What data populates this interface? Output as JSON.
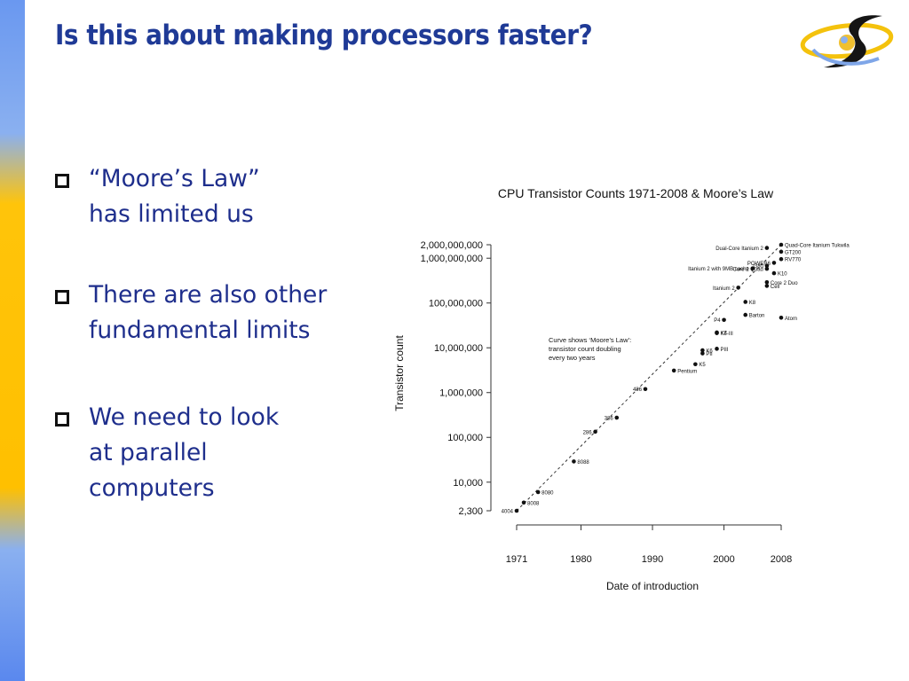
{
  "slide": {
    "title": "Is this about making processors faster?",
    "accent_color": "#1f3a96",
    "bullets": [
      {
        "lines": [
          "“Moore’s Law”",
          "has limited us"
        ]
      },
      {
        "lines": [
          "There are also other",
          "fundamental limits"
        ]
      },
      {
        "lines": [
          "We need to look",
          "at parallel",
          "computers"
        ]
      }
    ]
  },
  "chart_data": {
    "type": "scatter",
    "title": "CPU Transistor Counts 1971-2008 & Moore’s Law",
    "xlabel": "Date of introduction",
    "ylabel": "Transistor count",
    "y_scale": "log",
    "xlim": [
      1971,
      2008
    ],
    "ylim": [
      2300,
      2000000000
    ],
    "x_ticks": [
      1971,
      1980,
      1990,
      2000,
      2008
    ],
    "y_ticks": [
      {
        "value": 2300,
        "label": "2,300"
      },
      {
        "value": 10000,
        "label": "10,000"
      },
      {
        "value": 100000,
        "label": "100,000"
      },
      {
        "value": 1000000,
        "label": "1,000,000"
      },
      {
        "value": 10000000,
        "label": "10,000,000"
      },
      {
        "value": 100000000,
        "label": "100,000,000"
      },
      {
        "value": 1000000000,
        "label": "1,000,000,000"
      },
      {
        "value": 2000000000,
        "label": "2,000,000,000"
      }
    ],
    "annotation": [
      "Curve shows ‘Moore’s Law’:",
      "transistor count doubling",
      "every two years"
    ],
    "trend_line": {
      "x": [
        1971,
        2008
      ],
      "y": [
        2300,
        2000000000
      ]
    },
    "points": [
      {
        "label": "4004",
        "x": 1971,
        "y": 2300,
        "side": "left"
      },
      {
        "label": "8008",
        "x": 1972,
        "y": 3500,
        "side": "right"
      },
      {
        "label": "8080",
        "x": 1974,
        "y": 6000,
        "side": "right"
      },
      {
        "label": "8088",
        "x": 1979,
        "y": 29000,
        "side": "right"
      },
      {
        "label": "286",
        "x": 1982,
        "y": 134000,
        "side": "left"
      },
      {
        "label": "386",
        "x": 1985,
        "y": 275000,
        "side": "left"
      },
      {
        "label": "486",
        "x": 1989,
        "y": 1200000,
        "side": "left"
      },
      {
        "label": "Pentium",
        "x": 1993,
        "y": 3100000,
        "side": "right"
      },
      {
        "label": "K5",
        "x": 1996,
        "y": 4300000,
        "side": "right"
      },
      {
        "label": "K6",
        "x": 1997,
        "y": 8800000,
        "side": "right"
      },
      {
        "label": "PII",
        "x": 1997,
        "y": 7500000,
        "side": "right"
      },
      {
        "label": "PIII",
        "x": 1999,
        "y": 9500000,
        "side": "right"
      },
      {
        "label": "K6-III",
        "x": 1999,
        "y": 21300000,
        "side": "right"
      },
      {
        "label": "K7",
        "x": 1999,
        "y": 22000000,
        "side": "right"
      },
      {
        "label": "P4",
        "x": 2000,
        "y": 42000000,
        "side": "left"
      },
      {
        "label": "Barton",
        "x": 2003,
        "y": 54300000,
        "side": "right"
      },
      {
        "label": "K8",
        "x": 2003,
        "y": 105900000,
        "side": "right"
      },
      {
        "label": "Atom",
        "x": 2008,
        "y": 47000000,
        "side": "right"
      },
      {
        "label": "Itanium 2",
        "x": 2002,
        "y": 220000000,
        "side": "left"
      },
      {
        "label": "Cell",
        "x": 2006,
        "y": 241000000,
        "side": "right"
      },
      {
        "label": "Core 2 Duo",
        "x": 2006,
        "y": 291000000,
        "side": "right"
      },
      {
        "label": "K10",
        "x": 2007,
        "y": 463000000,
        "side": "right"
      },
      {
        "label": "Core 2 Quad",
        "x": 2006,
        "y": 582000000,
        "side": "left"
      },
      {
        "label": "Itanium 2 with 9MB cache",
        "x": 2004,
        "y": 592000000,
        "side": "left"
      },
      {
        "label": "G80",
        "x": 2006,
        "y": 681000000,
        "side": "left"
      },
      {
        "label": "RV770",
        "x": 2008,
        "y": 956000000,
        "side": "right"
      },
      {
        "label": "POWER6",
        "x": 2007,
        "y": 789000000,
        "side": "left"
      },
      {
        "label": "GT200",
        "x": 2008,
        "y": 1400000000,
        "side": "right"
      },
      {
        "label": "Dual-Core Itanium 2",
        "x": 2006,
        "y": 1700000000,
        "side": "left"
      },
      {
        "label": "Quad-Core Itanium Tukwila",
        "x": 2008,
        "y": 2000000000,
        "side": "right"
      }
    ]
  }
}
